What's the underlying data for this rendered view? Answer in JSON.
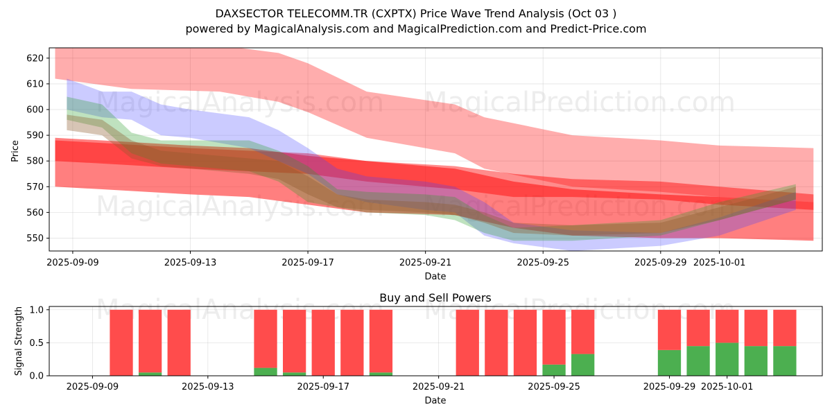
{
  "chart_data": [
    {
      "type": "area",
      "title": "DAXSECTOR TELECOMM.TR (CXPTX) Price Wave Trend Analysis (Oct 03 )",
      "subtitle": "powered by MagicalAnalysis.com and MagicalPrediction.com and Predict-Price.com",
      "xlabel": "Date",
      "ylabel": "Price",
      "ylim": [
        545,
        624
      ],
      "xlim": [
        "2025-09-08.2",
        "2025-10-04.5"
      ],
      "x_ticks": [
        "2025-09-09",
        "2025-09-13",
        "2025-09-17",
        "2025-09-21",
        "2025-09-25",
        "2025-09-29",
        "2025-10-01"
      ],
      "y_ticks": [
        550,
        560,
        570,
        580,
        590,
        600,
        610,
        620
      ],
      "grid": true,
      "watermarks": [
        "MagicalAnalysis.com",
        "MagicalPrediction.com",
        "MagicalAnalysis.com",
        "MagicalPrediction.com"
      ],
      "series": [
        {
          "name": "red-wide-band",
          "color": "#ff0000",
          "opacity": 0.32,
          "x": [
            "2025-09-08.4",
            "2025-09-11",
            "2025-09-14",
            "2025-09-16",
            "2025-09-17",
            "2025-09-19",
            "2025-09-22",
            "2025-09-23",
            "2025-09-26",
            "2025-09-29",
            "2025-10-01",
            "2025-10-04.2"
          ],
          "upper": [
            628,
            626,
            625,
            622,
            618,
            607,
            602,
            597,
            590,
            588,
            586,
            585
          ],
          "lower": [
            612,
            608,
            607,
            603,
            599,
            589,
            583,
            577,
            570,
            568,
            566,
            564
          ]
        },
        {
          "name": "red-lower-band",
          "color": "#ff0000",
          "opacity": 0.5,
          "x": [
            "2025-09-08.4",
            "2025-09-10",
            "2025-09-13",
            "2025-09-15",
            "2025-09-17",
            "2025-09-19",
            "2025-09-22",
            "2025-09-24",
            "2025-09-26",
            "2025-09-29",
            "2025-10-01",
            "2025-10-04.2"
          ],
          "upper": [
            589,
            588,
            586,
            585,
            582,
            580,
            577,
            572,
            569,
            567,
            566,
            564
          ],
          "lower": [
            570,
            569,
            567,
            566,
            563,
            560,
            559,
            554,
            551,
            550,
            550,
            549
          ]
        },
        {
          "name": "red-mid-band",
          "color": "#ff0000",
          "opacity": 0.45,
          "x": [
            "2025-09-08.4",
            "2025-09-10",
            "2025-09-13",
            "2025-09-15",
            "2025-09-17",
            "2025-09-19",
            "2025-09-22",
            "2025-09-24",
            "2025-09-26",
            "2025-09-29",
            "2025-10-01",
            "2025-10-04.2"
          ],
          "upper": [
            588,
            587,
            585,
            584,
            583,
            580,
            578,
            575,
            573,
            572,
            570,
            567
          ],
          "lower": [
            580,
            579,
            577,
            576,
            575,
            572,
            569,
            566,
            566,
            565,
            563,
            561
          ]
        },
        {
          "name": "blue-wave",
          "color": "#4444ff",
          "opacity": 0.28,
          "x": [
            "2025-09-08.8",
            "2025-09-10",
            "2025-09-11",
            "2025-09-12",
            "2025-09-13",
            "2025-09-15",
            "2025-09-16",
            "2025-09-17",
            "2025-09-18",
            "2025-09-19",
            "2025-09-21",
            "2025-09-22",
            "2025-09-23",
            "2025-09-24",
            "2025-09-26",
            "2025-09-29",
            "2025-10-01",
            "2025-10-03.6"
          ],
          "upper": [
            612,
            607,
            607,
            602,
            600,
            597,
            592,
            585,
            577,
            574,
            572,
            570,
            564,
            556,
            553,
            552,
            558,
            568
          ],
          "lower": [
            600,
            597,
            596,
            590,
            589,
            585,
            580,
            575,
            567,
            564,
            561,
            560,
            551,
            548,
            545,
            547,
            551,
            561
          ]
        },
        {
          "name": "green-wave",
          "color": "#2ca02c",
          "opacity": 0.3,
          "x": [
            "2025-09-08.8",
            "2025-09-10",
            "2025-09-11",
            "2025-09-12",
            "2025-09-13",
            "2025-09-15",
            "2025-09-16",
            "2025-09-17",
            "2025-09-18",
            "2025-09-19",
            "2025-09-21",
            "2025-09-22",
            "2025-09-23",
            "2025-09-24",
            "2025-09-26",
            "2025-09-29",
            "2025-10-01",
            "2025-10-03.6"
          ],
          "upper": [
            605,
            602,
            591,
            588,
            588,
            588,
            584,
            578,
            569,
            568,
            567,
            566,
            559,
            554,
            555,
            557,
            564,
            571
          ],
          "lower": [
            596,
            593,
            583,
            579,
            578,
            576,
            572,
            564,
            562,
            560,
            559,
            557,
            552,
            549,
            549,
            551,
            557,
            565
          ]
        },
        {
          "name": "brown-core",
          "color": "#8c5a2a",
          "opacity": 0.35,
          "x": [
            "2025-09-08.8",
            "2025-09-10",
            "2025-09-11",
            "2025-09-12",
            "2025-09-13",
            "2025-09-15",
            "2025-09-16",
            "2025-09-17",
            "2025-09-18",
            "2025-09-19",
            "2025-09-21",
            "2025-09-22",
            "2025-09-23",
            "2025-09-24",
            "2025-09-26",
            "2025-09-29",
            "2025-10-01",
            "2025-10-03.6"
          ],
          "upper": [
            598,
            596,
            588,
            584,
            583,
            581,
            580,
            574,
            567,
            565,
            564,
            563,
            560,
            556,
            555,
            556,
            562,
            570
          ],
          "lower": [
            592,
            590,
            581,
            578,
            577,
            575,
            573,
            567,
            562,
            561,
            560,
            559,
            556,
            552,
            551,
            552,
            557,
            565
          ]
        }
      ]
    },
    {
      "type": "bar",
      "title": "Buy and Sell Powers",
      "xlabel": "Date",
      "ylabel": "Signal Strength",
      "ylim": [
        0,
        1.05
      ],
      "y_ticks": [
        "0.0",
        "0.5",
        "1.0"
      ],
      "x_ticks": [
        "2025-09-09",
        "2025-09-13",
        "2025-09-17",
        "2025-09-21",
        "2025-09-25",
        "2025-09-29",
        "2025-10-01"
      ],
      "grid": true,
      "buy_color": "#4caf50",
      "sell_color": "#ff4c4c",
      "dates": [
        "2025-09-10",
        "2025-09-11",
        "2025-09-12",
        "2025-09-15",
        "2025-09-16",
        "2025-09-17",
        "2025-09-18",
        "2025-09-19",
        "2025-09-22",
        "2025-09-23",
        "2025-09-24",
        "2025-09-25",
        "2025-09-26",
        "2025-09-29",
        "2025-09-30",
        "2025-10-01",
        "2025-10-02",
        "2025-10-03"
      ],
      "buy": [
        0.0,
        0.05,
        0.0,
        0.12,
        0.05,
        0.0,
        0.0,
        0.05,
        0.0,
        0.0,
        0.0,
        0.17,
        0.33,
        0.39,
        0.45,
        0.5,
        0.45,
        0.45
      ],
      "sell": [
        1.0,
        0.95,
        1.0,
        0.88,
        0.95,
        1.0,
        1.0,
        0.95,
        1.0,
        1.0,
        1.0,
        0.83,
        0.67,
        0.61,
        0.55,
        0.5,
        0.55,
        0.55
      ]
    }
  ]
}
